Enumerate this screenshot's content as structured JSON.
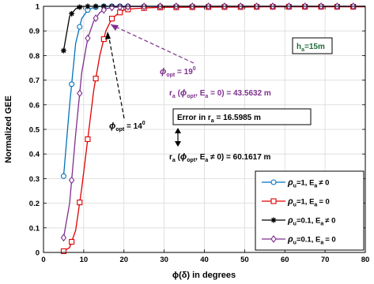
{
  "chart_data": {
    "type": "line",
    "xlabel": "ϕ(δ) in degrees",
    "ylabel": "Normalized GEE",
    "xlim": [
      0,
      80
    ],
    "ylim": [
      0,
      1
    ],
    "xticks": [
      0,
      10,
      20,
      30,
      40,
      50,
      60,
      70,
      80
    ],
    "yticks": [
      0,
      0.1,
      0.2,
      0.3,
      0.4,
      0.5,
      0.6,
      0.7,
      0.8,
      0.9,
      1
    ],
    "xtick_labels": [
      "0",
      "10",
      "20",
      "30",
      "40",
      "50",
      "60",
      "70",
      "80"
    ],
    "ytick_labels": [
      "0",
      "0.1",
      "0.2",
      "0.3",
      "0.4",
      "0.5",
      "0.6",
      "0.7",
      "0.8",
      "0.9",
      "1"
    ],
    "grid": true,
    "legend_position": "bottom-right",
    "x": [
      5,
      6.5,
      8,
      9.5,
      11,
      12.5,
      14,
      15.5,
      17,
      18.5,
      20,
      22,
      24,
      26,
      28,
      30,
      35,
      40,
      45,
      50,
      55,
      60,
      65,
      70,
      75,
      80
    ],
    "series": [
      {
        "name": "ρu=1, Ea≠ 0",
        "legend": {
          "rho": "ρ",
          "rho_sub": "u",
          "rho_value": "=1, E",
          "e_sub": "a",
          "condition": "≠ 0"
        },
        "color": "#0072BD",
        "marker": "circle",
        "marker_x": [
          5,
          7,
          9,
          11,
          13,
          15,
          17,
          19,
          21,
          25,
          29,
          33,
          37,
          41,
          45,
          49,
          53,
          57,
          61,
          65,
          69,
          73,
          77
        ],
        "values": [
          0.31,
          0.6,
          0.85,
          0.95,
          0.985,
          0.995,
          1,
          1,
          1,
          1,
          1,
          1,
          1,
          1,
          1,
          1,
          1,
          1,
          1,
          1,
          1,
          1,
          1,
          1,
          1,
          1
        ]
      },
      {
        "name": "ρu=1, Ea = 0",
        "legend": {
          "rho": "ρ",
          "rho_sub": "u",
          "rho_value": "=1, E",
          "e_sub": "a",
          "condition": "= 0"
        },
        "color": "#E00000",
        "marker": "square",
        "marker_x": [
          5,
          7,
          9,
          11,
          13,
          15,
          17,
          19,
          21,
          25,
          29,
          33,
          37,
          41,
          45,
          49,
          53,
          57,
          61,
          65,
          69,
          73,
          77
        ],
        "values": [
          0.005,
          0.02,
          0.09,
          0.26,
          0.46,
          0.66,
          0.8,
          0.9,
          0.95,
          0.97,
          0.985,
          0.99,
          0.992,
          0.994,
          0.995,
          0.996,
          0.996,
          0.997,
          0.997,
          0.997,
          0.998,
          0.998,
          0.998,
          0.998,
          0.998,
          0.998
        ]
      },
      {
        "name": "ρu=0.1, Ea≠ 0",
        "legend": {
          "rho": "ρ",
          "rho_sub": "u",
          "rho_value": "=0.1, E",
          "e_sub": "a",
          "condition": "≠ 0"
        },
        "color": "#000000",
        "marker": "asterisk",
        "marker_x": [
          5,
          7,
          9,
          11,
          13,
          15,
          17,
          19,
          21,
          25,
          29,
          33,
          37,
          41,
          45,
          49,
          53,
          57,
          61,
          65,
          69,
          73,
          77
        ],
        "values": [
          0.82,
          0.96,
          0.99,
          1,
          1,
          1,
          1,
          1,
          1,
          1,
          1,
          1,
          1,
          1,
          1,
          1,
          1,
          1,
          1,
          1,
          1,
          1,
          1,
          1,
          1,
          1
        ]
      },
      {
        "name": "ρu=0.1, Ea = 0",
        "legend": {
          "rho": "ρ",
          "rho_sub": "u",
          "rho_value": "=0.1, E",
          "e_sub": "a",
          "condition": "= 0"
        },
        "color": "#7E2F8E",
        "marker": "diamond",
        "marker_x": [
          5,
          7,
          9,
          11,
          13,
          15,
          17,
          19,
          21,
          25,
          29,
          33,
          37,
          41,
          45,
          49,
          53,
          57,
          61,
          65,
          69,
          73,
          77
        ],
        "values": [
          0.06,
          0.2,
          0.48,
          0.73,
          0.87,
          0.94,
          0.975,
          0.99,
          0.995,
          0.997,
          0.998,
          0.999,
          0.999,
          1,
          1,
          1,
          1,
          1,
          1,
          1,
          1,
          1,
          1,
          1,
          1,
          1
        ]
      }
    ],
    "annotations": {
      "ha_box": {
        "h": "h",
        "sub": "a",
        "rest": "=15m"
      },
      "phi_opt_19": {
        "phi": "ϕ",
        "sub": "opt",
        "rest": " = 19",
        "sup": "0"
      },
      "phi_opt_14": {
        "phi": "ϕ",
        "sub": "opt",
        "rest": " = 14",
        "sup": "0"
      },
      "ra_zero": {
        "r": "r",
        "r_sub": "a",
        "open": " (",
        "phi": "ϕ",
        "phi_sub": "opt",
        "mid": ", E",
        "e_sub": "a",
        "rest": " = 0) = 43.5632 m"
      },
      "error_box": {
        "pre": "Error in r",
        "sub": "a",
        "rest": " = 16.5985 m"
      },
      "ra_nonzero": {
        "r": "r",
        "r_sub": "a",
        "open": " (",
        "phi": "ϕ",
        "phi_sub": "opt",
        "mid": ", E",
        "e_sub": "a",
        "rest": " ≠ 0) = 60.1617 m"
      }
    }
  }
}
